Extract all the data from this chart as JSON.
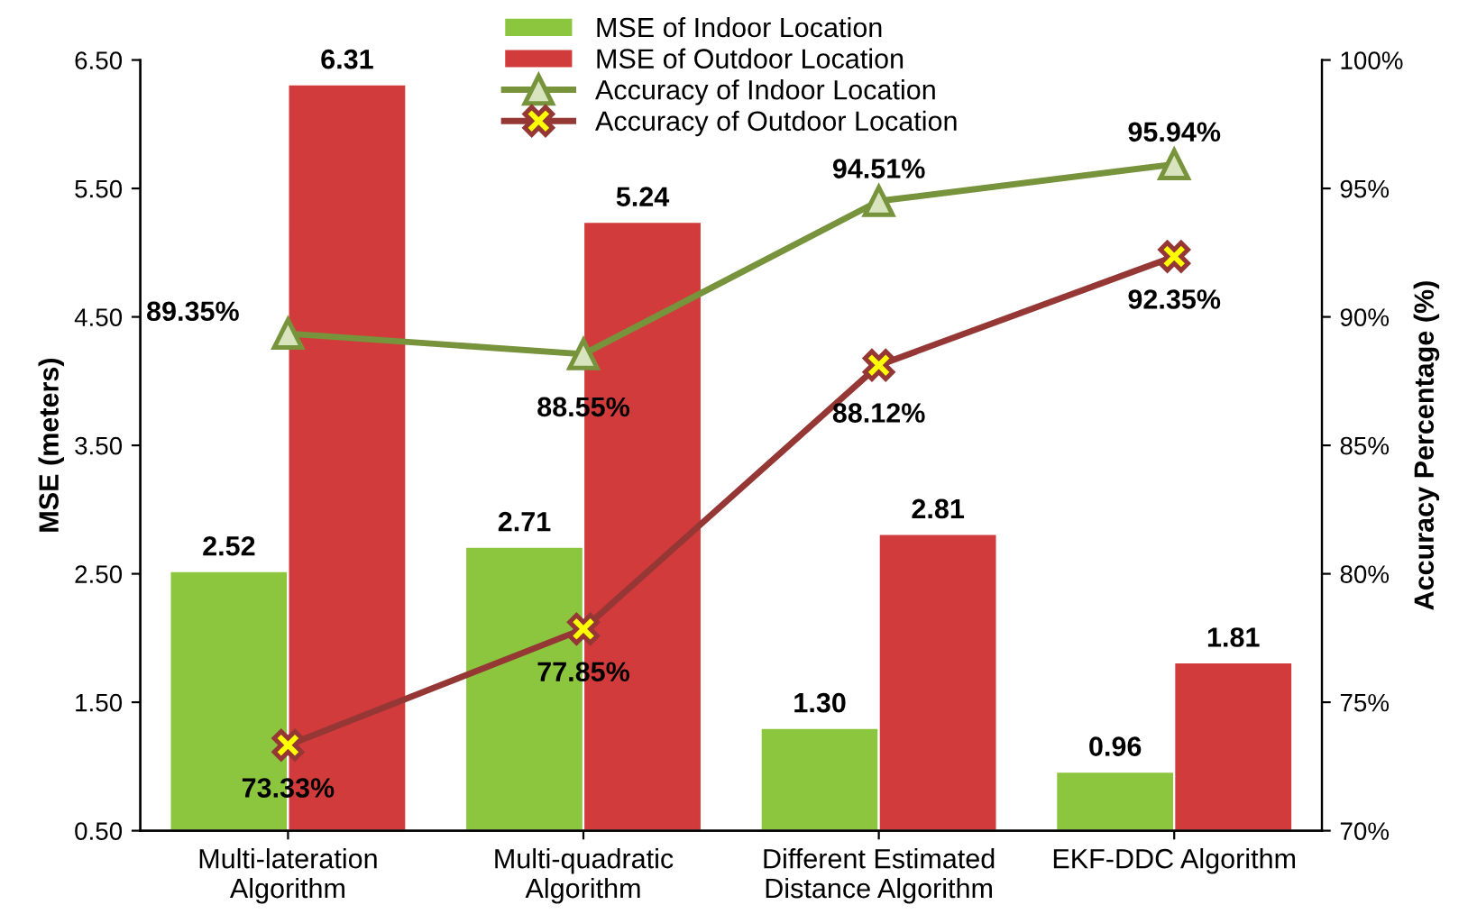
{
  "chart_data": {
    "type": "bar",
    "categories": [
      "Multi-lateration\nAlgorithm",
      "Multi-quadratic\nAlgorithm",
      "Different Estimated\nDistance Algorithm",
      "EKF-DDC Algorithm"
    ],
    "ylabel": "MSE (meters)",
    "y2label": "Accuracy Percentage (%)",
    "ylim": [
      0.5,
      6.5
    ],
    "yticks": [
      {
        "value": 0.5,
        "label": "0.50"
      },
      {
        "value": 1.5,
        "label": "1.50"
      },
      {
        "value": 2.5,
        "label": "2.50"
      },
      {
        "value": 3.5,
        "label": "3.50"
      },
      {
        "value": 4.5,
        "label": "4.50"
      },
      {
        "value": 5.5,
        "label": "5.50"
      },
      {
        "value": 6.5,
        "label": "6.50"
      }
    ],
    "y2lim": [
      70,
      100
    ],
    "y2ticks": [
      {
        "value": 70,
        "label": "70%"
      },
      {
        "value": 75,
        "label": "75%"
      },
      {
        "value": 80,
        "label": "80%"
      },
      {
        "value": 85,
        "label": "85%"
      },
      {
        "value": 90,
        "label": "90%"
      },
      {
        "value": 95,
        "label": "95%"
      },
      {
        "value": 100,
        "label": "100%"
      }
    ],
    "legend": "top",
    "grid": false,
    "series": [
      {
        "name": "MSE of Indoor Location",
        "color": "#8cc63f",
        "values": [
          2.52,
          2.71,
          1.3,
          0.96
        ],
        "value_labels": [
          "2.52",
          "2.71",
          "1.30",
          "0.96"
        ]
      },
      {
        "name": "MSE of Outdoor Location",
        "color": "#d13b3b",
        "values": [
          6.31,
          5.24,
          2.81,
          1.81
        ],
        "value_labels": [
          "6.31",
          "5.24",
          "2.81",
          "1.81"
        ]
      },
      {
        "name": "Accuracy of Indoor Location",
        "type": "line",
        "axis": "y2",
        "color": "#77933c",
        "marker": "triangle",
        "values": [
          89.35,
          88.55,
          94.51,
          95.94
        ],
        "value_labels": [
          "89.35%",
          "88.55%",
          "94.51%",
          "95.94%"
        ]
      },
      {
        "name": "Accuracy of Outdoor Location",
        "type": "line",
        "axis": "y2",
        "color": "#953735",
        "marker": "cross",
        "values": [
          73.33,
          77.85,
          88.12,
          92.35
        ],
        "value_labels": [
          "73.33%",
          "77.85%",
          "88.12%",
          "92.35%"
        ]
      }
    ]
  }
}
